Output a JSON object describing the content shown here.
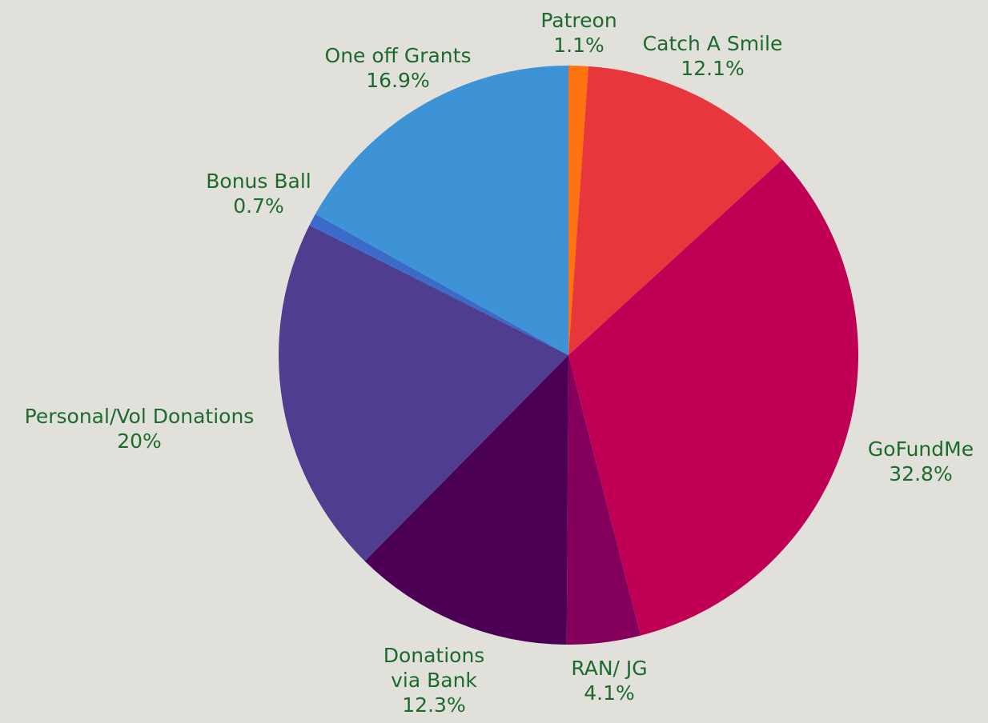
{
  "chart_data": {
    "type": "pie",
    "title": "",
    "slices": [
      {
        "label": "Patreon",
        "label_lines": [
          "Patreon"
        ],
        "value_label": "1.1%",
        "value": 1.1,
        "color": "#ff7410"
      },
      {
        "label": "Catch A Smile",
        "label_lines": [
          "Catch A Smile"
        ],
        "value_label": "12.1%",
        "value": 12.1,
        "color": "#e8363d"
      },
      {
        "label": "GoFundMe",
        "label_lines": [
          "GoFundMe"
        ],
        "value_label": "32.8%",
        "value": 32.8,
        "color": "#c00055"
      },
      {
        "label": "RAN/ JG",
        "label_lines": [
          "RAN/ JG"
        ],
        "value_label": "4.1%",
        "value": 4.1,
        "color": "#85005c"
      },
      {
        "label": "Donations via Bank",
        "label_lines": [
          "Donations",
          "via Bank"
        ],
        "value_label": "12.3%",
        "value": 12.3,
        "color": "#4b0055"
      },
      {
        "label": "Personal/Vol Donations",
        "label_lines": [
          "Personal/Vol Donations"
        ],
        "value_label": "20%",
        "value": 20,
        "color": "#4f3d8f"
      },
      {
        "label": "Bonus Ball",
        "label_lines": [
          "Bonus Ball"
        ],
        "value_label": "0.7%",
        "value": 0.7,
        "color": "#3a6bc8"
      },
      {
        "label": "One off Grants",
        "label_lines": [
          "One off Grants"
        ],
        "value_label": "16.9%",
        "value": 16.9,
        "color": "#3d93d5"
      }
    ],
    "start_angle": "top",
    "direction": "clockwise",
    "legend": "none",
    "label_color": "#1d6b2c",
    "background": "#e1e0da"
  }
}
